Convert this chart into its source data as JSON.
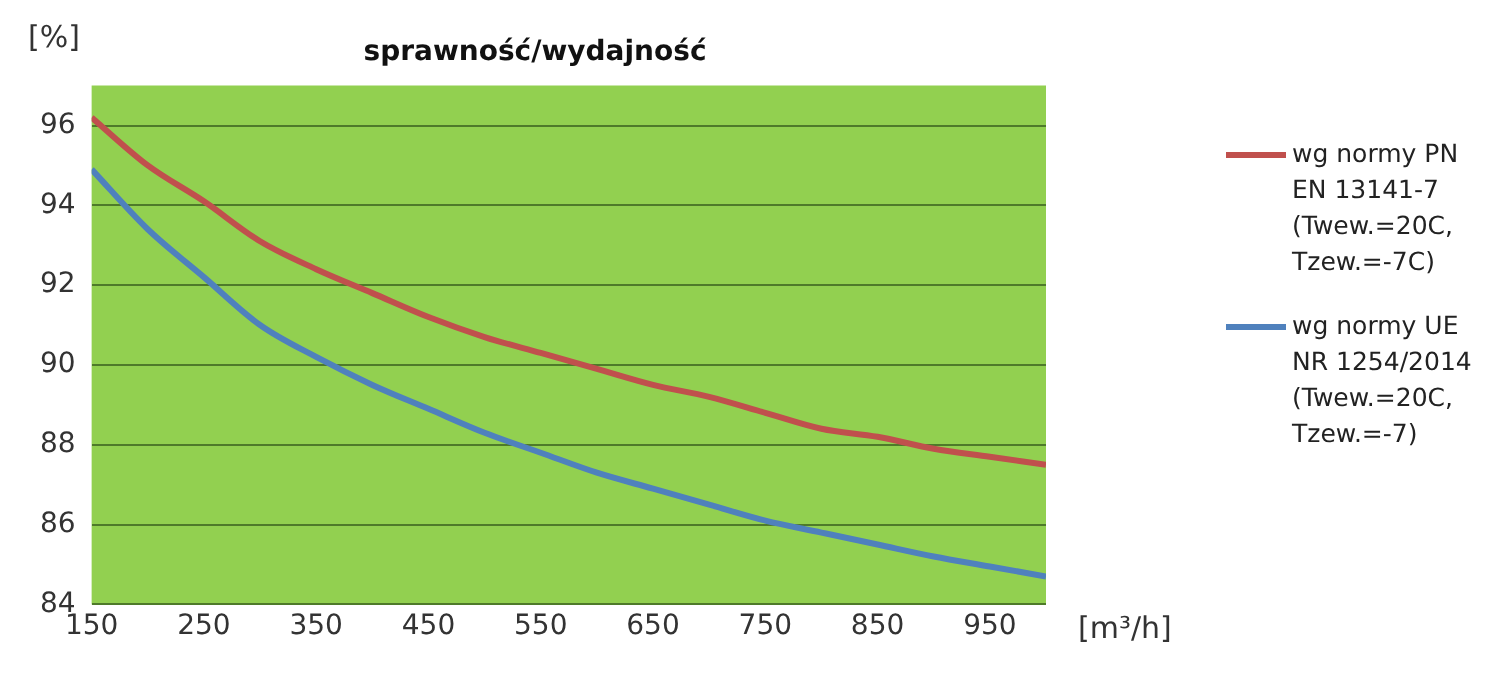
{
  "chart_data": {
    "type": "line",
    "title": "sprawność/wydajność",
    "xlabel": "[m³/h]",
    "ylabel": "[%]",
    "x": [
      150,
      200,
      250,
      300,
      350,
      400,
      450,
      500,
      550,
      600,
      650,
      700,
      750,
      800,
      850,
      900,
      950,
      1000
    ],
    "series": [
      {
        "name": "wg normy PN EN 13141-7 (Twew.=20C, Tzew.=-7C)",
        "color": "#c0504d",
        "values": [
          96.2,
          95.0,
          94.1,
          93.1,
          92.4,
          91.8,
          91.2,
          90.7,
          90.3,
          89.9,
          89.5,
          89.2,
          88.8,
          88.4,
          88.2,
          87.9,
          87.7,
          87.5
        ]
      },
      {
        "name": "wg normy UE NR 1254/2014 (Twew.=20C, Tzew.=-7)",
        "color": "#4f81bd",
        "values": [
          94.9,
          93.4,
          92.2,
          91.0,
          90.2,
          89.5,
          88.9,
          88.3,
          87.8,
          87.3,
          86.9,
          86.5,
          86.1,
          85.8,
          85.5,
          85.2,
          84.95,
          84.7
        ]
      }
    ],
    "xlim": [
      150,
      1000
    ],
    "xticks": [
      150,
      250,
      350,
      450,
      550,
      650,
      750,
      850,
      950
    ],
    "ylim": [
      84,
      97
    ],
    "yticks": [
      84,
      86,
      88,
      90,
      92,
      94,
      96
    ],
    "grid": "y",
    "legend": "right",
    "marker": "none",
    "line_style": "solid"
  }
}
